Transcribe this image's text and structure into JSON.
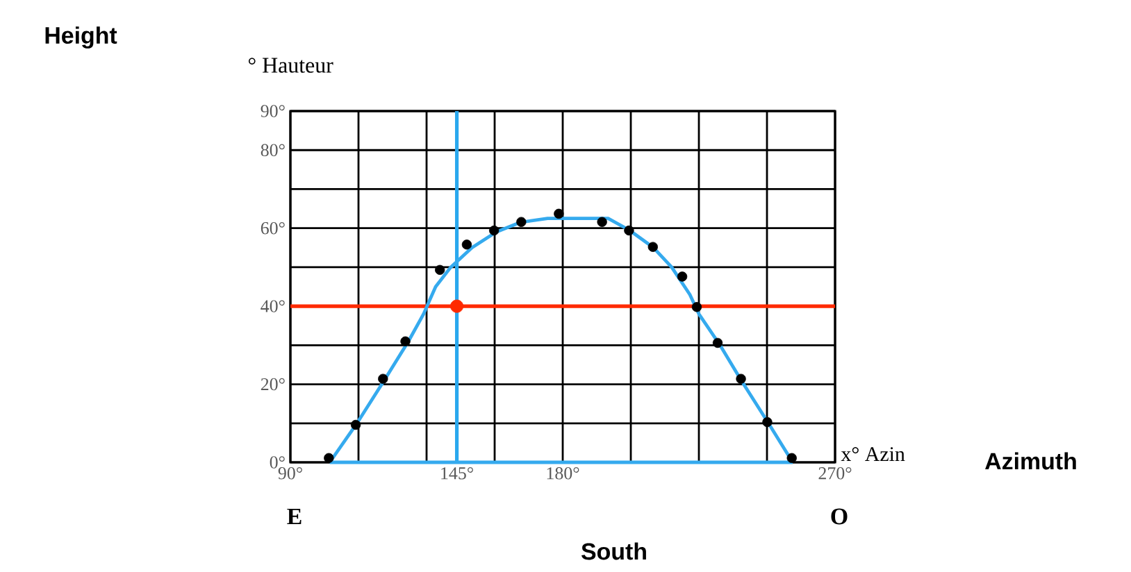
{
  "chart_data": {
    "type": "line",
    "ylabel": "° Hauteur",
    "xlabel": "x° Azin",
    "annotations": [
      "Height",
      "Azimuth",
      "South",
      "E",
      "O"
    ],
    "xlim": [
      90,
      270
    ],
    "ylim": [
      0,
      90
    ],
    "xticks": [
      {
        "value": 90,
        "label": "90°"
      },
      {
        "value": 112.5,
        "label": null
      },
      {
        "value": 135,
        "label": null
      },
      {
        "value": 145,
        "label": "145°"
      },
      {
        "value": 157.5,
        "label": null
      },
      {
        "value": 180,
        "label": "180°"
      },
      {
        "value": 202.5,
        "label": null
      },
      {
        "value": 225,
        "label": null
      },
      {
        "value": 247.5,
        "label": null
      },
      {
        "value": 270,
        "label": "270°"
      }
    ],
    "yticks": [
      {
        "value": 0,
        "label": "0°"
      },
      {
        "value": 10,
        "label": null
      },
      {
        "value": 20,
        "label": "20°"
      },
      {
        "value": 30,
        "label": null
      },
      {
        "value": 40,
        "label": "40°"
      },
      {
        "value": 50,
        "label": null
      },
      {
        "value": 60,
        "label": "60°"
      },
      {
        "value": 70,
        "label": null
      },
      {
        "value": 80,
        "label": "80°"
      },
      {
        "value": 90,
        "label": "90°"
      }
    ],
    "grid": true,
    "ref_lines": [
      {
        "axis": "x",
        "value": 145,
        "color": "#2aa8ee"
      },
      {
        "axis": "y",
        "value": 40,
        "color": "#ff2a00"
      }
    ],
    "series": [
      {
        "color": "#35aaee",
        "marker": "none",
        "x": [
          103,
          112,
          121,
          129,
          134,
          138,
          143,
          150,
          158,
          166,
          175,
          185,
          195,
          202,
          210,
          216,
          222,
          225,
          232,
          239,
          248,
          256
        ],
        "values": [
          0,
          10,
          21,
          31,
          38,
          45,
          50,
          55,
          59,
          61.5,
          62.5,
          62.5,
          62.5,
          59.5,
          55,
          50,
          43,
          38,
          30,
          21,
          10,
          0
        ]
      },
      {
        "color": "#35aaee",
        "marker": "none",
        "x": [
          103,
          256
        ],
        "values": [
          0,
          0
        ]
      },
      {
        "type": "scatter",
        "color": "#000000",
        "marker": "circle",
        "x": [
          102.7,
          111.6,
          120.6,
          128,
          139.4,
          148.3,
          157.3,
          166.3,
          178.7,
          193,
          201.9,
          209.8,
          219.5,
          224.3,
          231.2,
          238.9,
          247.6,
          255.7
        ],
        "values": [
          1.1,
          9.6,
          21.4,
          31,
          49.3,
          55.8,
          59.4,
          61.6,
          63.7,
          61.6,
          59.4,
          55.2,
          47.6,
          39.8,
          30.6,
          21.4,
          10.3,
          1.1
        ]
      },
      {
        "type": "scatter",
        "color": "#ff2a00",
        "marker": "circle",
        "x": [
          145
        ],
        "values": [
          40
        ]
      }
    ]
  }
}
